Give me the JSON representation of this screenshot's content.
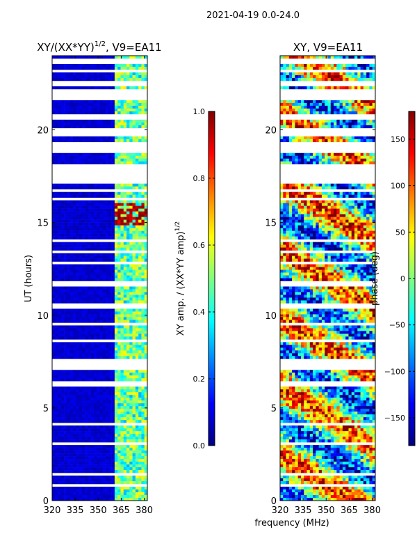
{
  "suptitle": "2021-04-19 0.0-24.0",
  "shared_xlabel": "frequency (MHz)",
  "colors": {
    "jet": [
      "#00007f",
      "#0000ff",
      "#007fff",
      "#00ffff",
      "#7fff7f",
      "#ffff00",
      "#ff7f00",
      "#ff0000",
      "#7f0000"
    ],
    "flagged": "#ffffff",
    "axis": "#000000"
  },
  "chart_data": [
    {
      "type": "heatmap",
      "title_prefix": "XY/(XX*YY)",
      "title_exponent": "1/2",
      "title_suffix": ", V9=EA11",
      "xlabel": "",
      "ylabel": "UT (hours)",
      "xlim": [
        320,
        382
      ],
      "ylim": [
        0,
        24
      ],
      "xticks": [
        320,
        335,
        350,
        365,
        380
      ],
      "yticks": [
        0,
        5,
        10,
        15,
        20
      ],
      "colorbar": {
        "label": "XY amp. / (XX*YY amp)",
        "label_exponent": "1/2",
        "range": [
          0.0,
          1.0
        ],
        "ticks": [
          "0.0",
          "0.2",
          "0.4",
          "0.6",
          "0.8",
          "1.0"
        ]
      },
      "description_values": {
        "background_level": 0.05,
        "band_start_mhz": 360,
        "band_level_range": [
          0.3,
          0.65
        ],
        "hot_rows_ut_range": [
          14.8,
          16.0
        ],
        "hot_level": 0.9
      }
    },
    {
      "type": "heatmap",
      "title": "XY, V9=EA11",
      "xlabel": "",
      "ylabel": "",
      "xlim": [
        320,
        382
      ],
      "ylim": [
        0,
        24
      ],
      "xticks": [
        320,
        335,
        350,
        365,
        380
      ],
      "yticks": [
        0,
        5,
        10,
        15,
        20
      ],
      "colorbar": {
        "label": "phase (deg)",
        "range": [
          -180,
          180
        ],
        "ticks": [
          "−150",
          "−100",
          "−50",
          "0",
          "50",
          "100",
          "150"
        ]
      }
    }
  ],
  "flagged_ut_ranges": [
    [
      23.6,
      23.8
    ],
    [
      23.1,
      23.2
    ],
    [
      22.4,
      22.6
    ],
    [
      21.6,
      22.2
    ],
    [
      20.6,
      20.9
    ],
    [
      19.6,
      20.1
    ],
    [
      18.7,
      19.3
    ],
    [
      17.1,
      18.1
    ],
    [
      16.6,
      16.8
    ],
    [
      16.2,
      16.3
    ],
    [
      13.9,
      14.1
    ],
    [
      13.3,
      13.5
    ],
    [
      12.8,
      12.9
    ],
    [
      11.5,
      11.8
    ],
    [
      10.4,
      10.6
    ],
    [
      9.4,
      9.6
    ],
    [
      8.6,
      8.7
    ],
    [
      7.1,
      7.6
    ],
    [
      6.2,
      6.5
    ],
    [
      5.2,
      5.3
    ],
    [
      4.1,
      4.2
    ],
    [
      3.0,
      3.1
    ],
    [
      2.5,
      2.6
    ],
    [
      1.4,
      1.5
    ],
    [
      0.8,
      0.9
    ]
  ]
}
